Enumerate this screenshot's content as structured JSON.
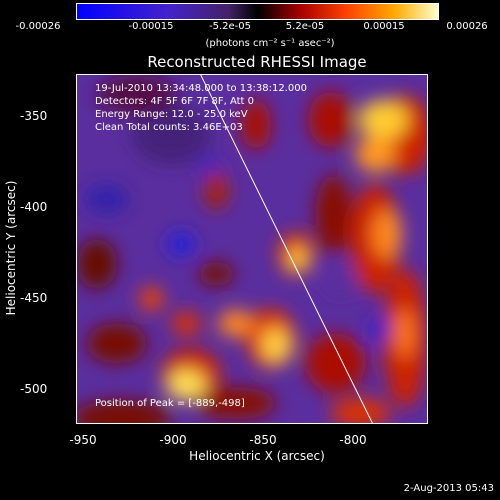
{
  "colorbar": {
    "ticks": [
      "-0.00026",
      "-0.00015",
      "-5.2e-05",
      "5.2e-05",
      "0.00015",
      "0.00026"
    ],
    "units": "(photons cm⁻² s⁻¹ asec⁻²)"
  },
  "title": "Reconstructed RHESSI Image",
  "info": {
    "time_range": "19-Jul-2010 13:34:48.000 to 13:38:12.000",
    "detectors": "Detectors: 4F 5F 6F 7F 8F, Att 0",
    "energy_range": "Energy Range: 12.0 - 25.0 keV",
    "clean": "Clean    Total counts: 3.46E+03",
    "peak": "Position of Peak = [-889,-498]"
  },
  "axes": {
    "xlabel": "Heliocentric X (arcsec)",
    "ylabel": "Heliocentric Y (arcsec)",
    "xticks": [
      -950,
      -900,
      -850,
      -800
    ],
    "yticks": [
      -350,
      -400,
      -450,
      -500
    ],
    "xlim": [
      -950,
      -790
    ],
    "ylim": [
      -320,
      -520
    ]
  },
  "date_stamp": "2-Aug-2013 05:43",
  "colors": {
    "low": "#0000ff",
    "mid": "#6633aa",
    "high": "#ffff88"
  }
}
